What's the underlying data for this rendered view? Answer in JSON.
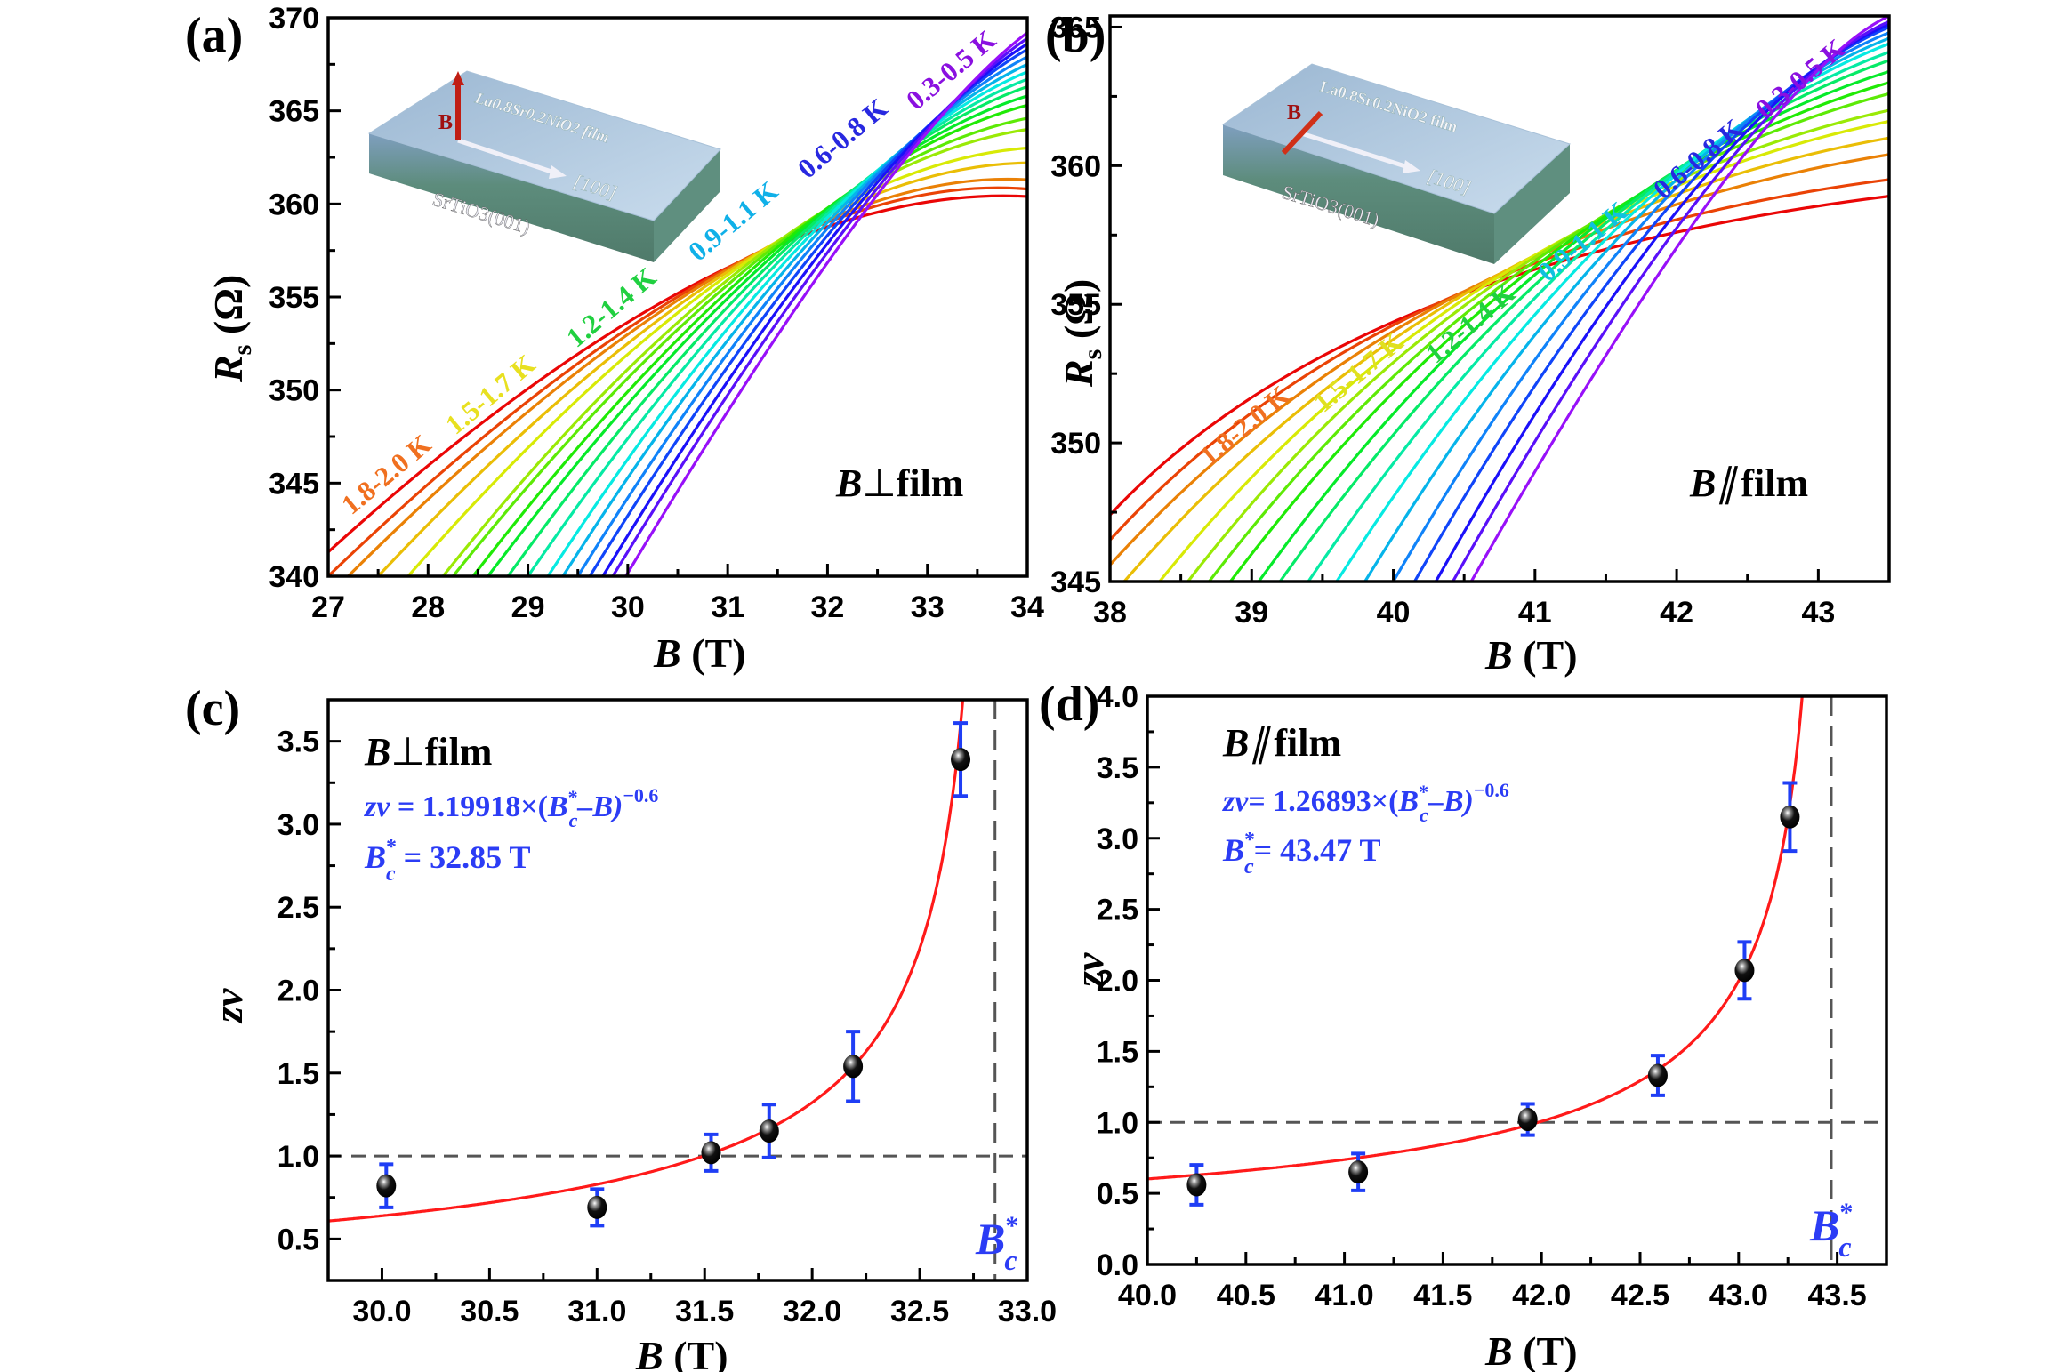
{
  "chart_data": [
    {
      "id": "a",
      "panel_label": "(a)",
      "type": "line",
      "xlabel_var": "B",
      "xlabel_unit": " (T)",
      "ylabel_var": "R",
      "ylabel_sub": "s",
      "ylabel_unit": " (Ω)",
      "xlim": [
        27,
        34
      ],
      "ylim": [
        340,
        370
      ],
      "xticks": [
        27,
        28,
        29,
        30,
        31,
        32,
        33,
        34
      ],
      "yticks": [
        340,
        345,
        350,
        355,
        360,
        365,
        370
      ],
      "geometry_label": "B⊥film",
      "geometry_var": "B",
      "geometry_symbol": "⊥",
      "geometry_word": "film",
      "inset": {
        "film": "La0.8Sr0.2NiO2 film",
        "direction": "[100]",
        "substrate": "SrTiO3(001)",
        "field_label": "B",
        "field_orientation": "perpendicular"
      },
      "temperature_labels": [
        "1.8-2.0 K",
        "1.5-1.7 K",
        "1.2-1.4 K",
        "0.9-1.1 K",
        "0.6-0.8 K",
        "0.3-0.5 K"
      ],
      "temperature_label_colors": [
        "#e8201a",
        "#e8e81a",
        "#22d83a",
        "#12b4e8",
        "#2a2ae8",
        "#8a12e8"
      ],
      "curve_count": 18,
      "curves_x0": [
        27.0,
        27.0,
        27.2,
        27.5,
        27.8,
        28.15,
        28.25,
        28.45,
        28.6,
        28.8,
        29.0,
        29.2,
        29.35,
        29.5,
        29.62,
        29.75,
        29.85,
        29.98
      ],
      "curves_end_y": [
        360.4,
        360.8,
        361.3,
        362.2,
        363.0,
        364.0,
        364.6,
        365.3,
        365.8,
        366.3,
        366.7,
        367.1,
        367.5,
        367.9,
        368.3,
        368.6,
        368.9,
        369.2
      ],
      "curves_start_y": [
        341.3,
        340.0,
        340.0,
        340.0,
        340.0,
        340.0,
        340.0,
        340.0,
        340.0,
        340.0,
        340.0,
        340.0,
        340.0,
        340.0,
        340.0,
        340.0,
        340.0,
        340.0
      ],
      "crossing_region": {
        "B_range": [
          30.8,
          32.3
        ],
        "R_range": [
          355.5,
          361
        ]
      }
    },
    {
      "id": "b",
      "panel_label": "(b)",
      "type": "line",
      "xlabel_var": "B",
      "xlabel_unit": " (T)",
      "ylabel_var": "R",
      "ylabel_sub": "s",
      "ylabel_unit": " (Ω)",
      "xlim": [
        38,
        43.5
      ],
      "ylim": [
        345,
        365.4
      ],
      "xticks": [
        38,
        39,
        40,
        41,
        42,
        43
      ],
      "yticks": [
        345,
        350,
        355,
        360,
        365
      ],
      "geometry_label": "B∥film",
      "geometry_var": "B",
      "geometry_symbol": "∥",
      "geometry_word": "film",
      "inset": {
        "film": "La0.8Sr0.2NiO2 film",
        "direction": "[100]",
        "substrate": "SrTiO3(001)",
        "field_label": "B",
        "field_orientation": "parallel"
      },
      "temperature_labels": [
        "1.8-2.0 K",
        "1.5-1.7 K",
        "1.2-1.4 K",
        "0.9-1.1 K",
        "0.6-0.8 K",
        "0.3-0.5 K"
      ],
      "temperature_label_colors": [
        "#f07010",
        "#e8e81a",
        "#22d83a",
        "#12c8e8",
        "#2a2ae8",
        "#8a12e8"
      ],
      "curve_count": 18,
      "curves_x0": [
        38.0,
        38.0,
        38.0,
        38.1,
        38.35,
        38.55,
        38.7,
        38.85,
        39.05,
        39.2,
        39.4,
        39.6,
        39.8,
        40.0,
        40.15,
        40.3,
        40.42,
        40.55
      ],
      "curves_end_y": [
        358.9,
        359.5,
        360.4,
        361.0,
        361.6,
        362.0,
        362.6,
        363.0,
        363.4,
        363.8,
        364.1,
        364.4,
        364.6,
        364.8,
        365.0,
        365.1,
        365.2,
        365.4
      ],
      "curves_start_y": [
        347.4,
        346.5,
        345.6,
        345.0,
        345.0,
        345.0,
        345.0,
        345.0,
        345.0,
        345.0,
        345.0,
        345.0,
        345.0,
        345.0,
        345.0,
        345.0,
        345.0,
        345.0
      ],
      "crossing_region": {
        "B_range": [
          40.2,
          42.3
        ],
        "R_range": [
          354,
          362
        ]
      }
    },
    {
      "id": "c",
      "panel_label": "(c)",
      "type": "scatter",
      "xlabel_var": "B",
      "xlabel_unit": " (T)",
      "ylabel": "zν",
      "xlim": [
        29.75,
        33.0
      ],
      "ylim": [
        0.25,
        3.75
      ],
      "xticks": [
        "30.0",
        "30.5",
        "31.0",
        "31.5",
        "32.0",
        "32.5",
        "33.0"
      ],
      "yticks": [
        "0.5",
        "1.0",
        "1.5",
        "2.0",
        "2.5",
        "3.0",
        "3.5"
      ],
      "geometry_label": "B⊥film",
      "geometry_var": "B",
      "geometry_symbol": "⊥",
      "geometry_word": "film",
      "equation": {
        "lhs": "zν",
        "eq": " = ",
        "coef": "1.19918×(",
        "B": "B",
        "sub": "c",
        "sup_star": "*",
        "minus": "–B)",
        "exponent": "−0.6"
      },
      "bc_text": {
        "B": "B",
        "star": "*",
        "sub": "c",
        "value": " = 32.85 T"
      },
      "bc_marker": {
        "B": "B",
        "star": "*",
        "sub": "c"
      },
      "fit": {
        "coefficient": 1.19918,
        "Bc": 32.85,
        "exponent": -0.6
      },
      "reference_line_y": 1.0,
      "x": [
        30.02,
        31.0,
        31.53,
        31.8,
        32.19,
        32.69
      ],
      "y": [
        0.82,
        0.69,
        1.02,
        1.15,
        1.54,
        3.39
      ],
      "yerr": [
        0.13,
        0.11,
        0.11,
        0.16,
        0.21,
        0.22
      ]
    },
    {
      "id": "d",
      "panel_label": "(d)",
      "type": "scatter",
      "xlabel_var": "B",
      "xlabel_unit": " (T)",
      "ylabel": "zν",
      "xlim": [
        40.0,
        43.75
      ],
      "ylim": [
        0.0,
        4.0
      ],
      "xticks": [
        "40.0",
        "40.5",
        "41.0",
        "41.5",
        "42.0",
        "42.5",
        "43.0",
        "43.5"
      ],
      "yticks": [
        "0.0",
        "0.5",
        "1.0",
        "1.5",
        "2.0",
        "2.5",
        "3.0",
        "3.5",
        "4.0"
      ],
      "geometry_label": "B∥film",
      "geometry_var": "B",
      "geometry_symbol": "∥",
      "geometry_word": "film",
      "equation": {
        "lhs": "zν",
        "eq": "= ",
        "coef": "1.26893×(",
        "B": "B",
        "sub": "c",
        "sup_star": "*",
        "minus": "–B)",
        "exponent": "−0.6"
      },
      "bc_text": {
        "B": "B",
        "star": "*",
        "sub": "c",
        "value": "= 43.47 T"
      },
      "bc_marker": {
        "B": "B",
        "star": "*",
        "sub": "c"
      },
      "fit": {
        "coefficient": 1.26893,
        "Bc": 43.47,
        "exponent": -0.6
      },
      "reference_line_y": 1.0,
      "x": [
        40.25,
        41.07,
        41.93,
        42.59,
        43.03,
        43.26
      ],
      "y": [
        0.56,
        0.65,
        1.02,
        1.33,
        2.07,
        3.15
      ],
      "yerr": [
        0.14,
        0.13,
        0.11,
        0.14,
        0.2,
        0.24
      ]
    }
  ]
}
